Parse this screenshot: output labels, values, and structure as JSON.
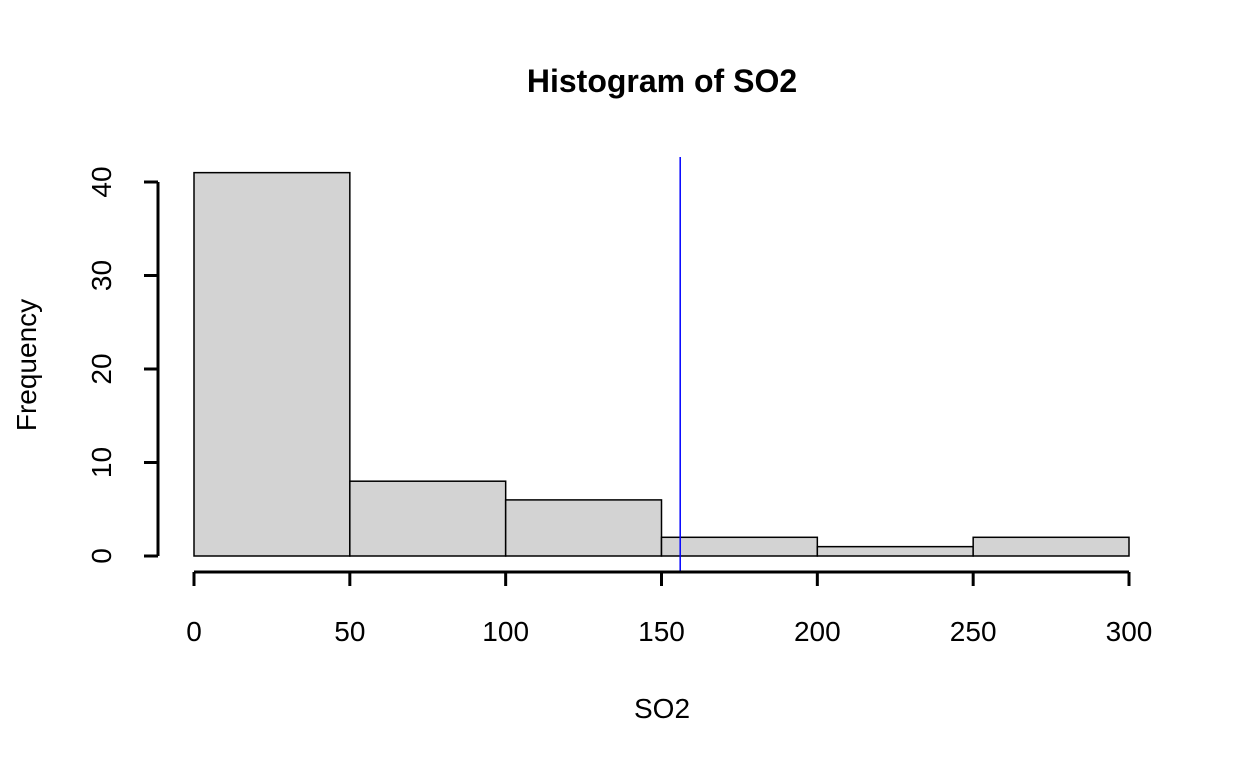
{
  "chart_data": {
    "type": "bar",
    "title": "Histogram of SO2",
    "xlabel": "SO2",
    "ylabel": "Frequency",
    "bins": [
      {
        "from": 0,
        "to": 50,
        "count": 41
      },
      {
        "from": 50,
        "to": 100,
        "count": 8
      },
      {
        "from": 100,
        "to": 150,
        "count": 6
      },
      {
        "from": 150,
        "to": 200,
        "count": 2
      },
      {
        "from": 200,
        "to": 250,
        "count": 1
      },
      {
        "from": 250,
        "to": 300,
        "count": 2
      }
    ],
    "xlim": [
      0,
      300
    ],
    "ylim": [
      0,
      40
    ],
    "x_ticks": [
      "0",
      "50",
      "100",
      "150",
      "200",
      "250",
      "300"
    ],
    "y_ticks": [
      "0",
      "10",
      "20",
      "30",
      "40"
    ],
    "vline": {
      "x": 156,
      "color": "#0000ff"
    },
    "bar_fill": "#d3d3d3",
    "bar_stroke": "#000000",
    "grid": false
  }
}
